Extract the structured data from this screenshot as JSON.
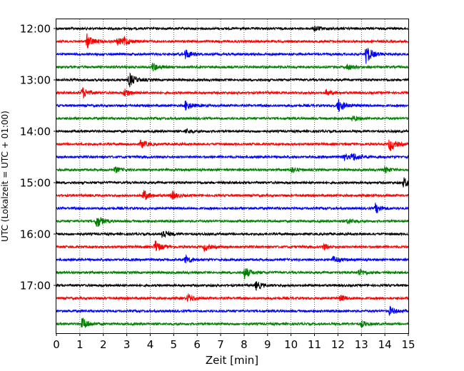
{
  "chart_data": {
    "type": "line",
    "title": "",
    "xlabel": "Zeit  [min]",
    "ylabel": "UTC (Lokalzeit = UTC + 01:00)",
    "xlim": [
      0,
      15
    ],
    "x_ticks": [
      "0",
      "1",
      "2",
      "3",
      "4",
      "5",
      "6",
      "7",
      "8",
      "9",
      "10",
      "11",
      "12",
      "13",
      "14",
      "15"
    ],
    "y_tick_labels": [
      "12:00",
      "13:00",
      "14:00",
      "15:00",
      "16:00",
      "17:00"
    ],
    "grid": "vertical dotted at each minute",
    "row_colors": [
      "#000000",
      "#ff0000",
      "#0000ff",
      "#008000"
    ],
    "series": [
      {
        "start": "12:00",
        "color": "#000000",
        "events": [
          {
            "x": 11.0,
            "amp": 4
          }
        ]
      },
      {
        "start": "12:15",
        "color": "#ff0000",
        "events": [
          {
            "x": 1.3,
            "amp": 10
          },
          {
            "x": 2.6,
            "amp": 5
          },
          {
            "x": 2.9,
            "amp": 5
          }
        ]
      },
      {
        "start": "12:30",
        "color": "#0000ff",
        "events": [
          {
            "x": 5.5,
            "amp": 7
          },
          {
            "x": 13.2,
            "amp": 13
          }
        ]
      },
      {
        "start": "12:45",
        "color": "#008000",
        "events": [
          {
            "x": 4.1,
            "amp": 6
          },
          {
            "x": 12.4,
            "amp": 4
          }
        ]
      },
      {
        "start": "13:00",
        "color": "#000000",
        "events": [
          {
            "x": 3.1,
            "amp": 10
          }
        ]
      },
      {
        "start": "13:15",
        "color": "#ff0000",
        "events": [
          {
            "x": 1.1,
            "amp": 8
          },
          {
            "x": 2.9,
            "amp": 6
          },
          {
            "x": 11.5,
            "amp": 4
          }
        ]
      },
      {
        "start": "13:30",
        "color": "#0000ff",
        "events": [
          {
            "x": 5.5,
            "amp": 7
          },
          {
            "x": 12.0,
            "amp": 10
          }
        ]
      },
      {
        "start": "13:45",
        "color": "#008000",
        "events": [
          {
            "x": 12.6,
            "amp": 4
          }
        ]
      },
      {
        "start": "14:00",
        "color": "#000000",
        "events": [
          {
            "x": 5.5,
            "amp": 3
          }
        ]
      },
      {
        "start": "14:15",
        "color": "#ff0000",
        "events": [
          {
            "x": 3.6,
            "amp": 6
          },
          {
            "x": 14.2,
            "amp": 10
          }
        ]
      },
      {
        "start": "14:30",
        "color": "#0000ff",
        "events": [
          {
            "x": 12.2,
            "amp": 5
          },
          {
            "x": 12.6,
            "amp": 6
          }
        ]
      },
      {
        "start": "14:45",
        "color": "#008000",
        "events": [
          {
            "x": 2.5,
            "amp": 4
          },
          {
            "x": 10.0,
            "amp": 4
          },
          {
            "x": 14.0,
            "amp": 4
          }
        ]
      },
      {
        "start": "15:00",
        "color": "#000000",
        "events": [
          {
            "x": 14.8,
            "amp": 7
          }
        ]
      },
      {
        "start": "15:15",
        "color": "#ff0000",
        "events": [
          {
            "x": 3.7,
            "amp": 8
          },
          {
            "x": 4.9,
            "amp": 6
          }
        ]
      },
      {
        "start": "15:30",
        "color": "#0000ff",
        "events": [
          {
            "x": 13.6,
            "amp": 7
          }
        ]
      },
      {
        "start": "15:45",
        "color": "#008000",
        "events": [
          {
            "x": 1.7,
            "amp": 10
          },
          {
            "x": 12.4,
            "amp": 4
          }
        ]
      },
      {
        "start": "16:00",
        "color": "#000000",
        "events": [
          {
            "x": 4.5,
            "amp": 7
          }
        ]
      },
      {
        "start": "16:15",
        "color": "#ff0000",
        "events": [
          {
            "x": 4.2,
            "amp": 9
          },
          {
            "x": 6.3,
            "amp": 5
          },
          {
            "x": 11.4,
            "amp": 4
          }
        ]
      },
      {
        "start": "16:30",
        "color": "#0000ff",
        "events": [
          {
            "x": 5.5,
            "amp": 6
          },
          {
            "x": 11.8,
            "amp": 5
          }
        ]
      },
      {
        "start": "16:45",
        "color": "#008000",
        "events": [
          {
            "x": 8.0,
            "amp": 9
          },
          {
            "x": 12.9,
            "amp": 5
          }
        ]
      },
      {
        "start": "17:00",
        "color": "#000000",
        "events": [
          {
            "x": 8.5,
            "amp": 6
          }
        ]
      },
      {
        "start": "17:15",
        "color": "#ff0000",
        "events": [
          {
            "x": 5.6,
            "amp": 6
          },
          {
            "x": 12.1,
            "amp": 4
          }
        ]
      },
      {
        "start": "17:30",
        "color": "#0000ff",
        "events": [
          {
            "x": 14.2,
            "amp": 6
          }
        ]
      },
      {
        "start": "17:45",
        "color": "#008000",
        "events": [
          {
            "x": 1.1,
            "amp": 9
          },
          {
            "x": 13.0,
            "amp": 4
          }
        ]
      }
    ]
  }
}
